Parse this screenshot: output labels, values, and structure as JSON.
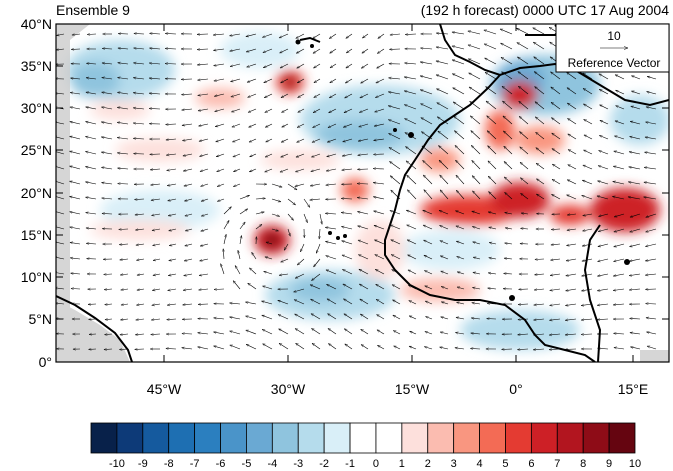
{
  "header": {
    "left": "Ensemble 9",
    "right": "(192 h forecast) 0000 UTC 17 Aug 2004"
  },
  "map": {
    "lat_labels": [
      "40°N",
      "35°N",
      "30°N",
      "25°N",
      "20°N",
      "15°N",
      "10°N",
      "5°N",
      "0°"
    ],
    "lon_labels": [
      "45°W",
      "30°W",
      "15°W",
      "0°",
      "15°E"
    ],
    "lat_range": [
      0,
      40
    ],
    "lon_range": [
      -57,
      19
    ],
    "land_color": "#cccccc"
  },
  "reference_vector": {
    "value": "10",
    "label": "Reference Vector"
  },
  "colorbar": {
    "labels": [
      "-10",
      "-9",
      "-8",
      "-7",
      "-6",
      "-5",
      "-4",
      "-3",
      "-2",
      "-1",
      "0",
      "1",
      "2",
      "3",
      "4",
      "5",
      "6",
      "7",
      "8",
      "9",
      "10"
    ],
    "colors": [
      "#08214a",
      "#0d3a78",
      "#155a9e",
      "#1e6fb2",
      "#2b7fbf",
      "#4a94c9",
      "#6aa9d3",
      "#8fc4de",
      "#b5dcec",
      "#d9eff8",
      "#ffffff",
      "#ffffff",
      "#fde0dc",
      "#fbbcb0",
      "#f99680",
      "#f36b55",
      "#e43b32",
      "#cd2026",
      "#b2151f",
      "#8e0c17",
      "#650510"
    ]
  }
}
